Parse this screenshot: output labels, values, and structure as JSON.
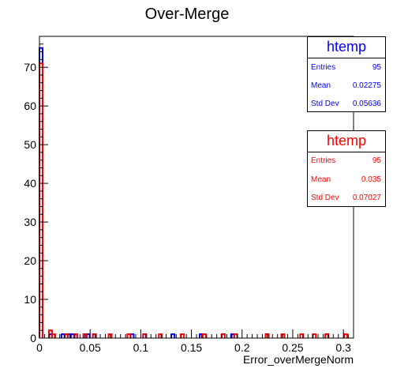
{
  "chart_data": {
    "type": "histogram",
    "title": "Over-Merge",
    "xlabel": "Error_overMergeNorm",
    "ylabel": "",
    "xlim": [
      0,
      0.31
    ],
    "ylim": [
      0,
      78
    ],
    "x_ticks": [
      {
        "v": 0,
        "label": "0"
      },
      {
        "v": 0.05,
        "label": "0.05"
      },
      {
        "v": 0.1,
        "label": "0.1"
      },
      {
        "v": 0.15,
        "label": "0.15"
      },
      {
        "v": 0.2,
        "label": "0.2"
      },
      {
        "v": 0.25,
        "label": "0.25"
      },
      {
        "v": 0.3,
        "label": "0.3"
      }
    ],
    "y_ticks": [
      {
        "v": 0,
        "label": "0"
      },
      {
        "v": 10,
        "label": "10"
      },
      {
        "v": 20,
        "label": "20"
      },
      {
        "v": 30,
        "label": "30"
      },
      {
        "v": 40,
        "label": "40"
      },
      {
        "v": 50,
        "label": "50"
      },
      {
        "v": 60,
        "label": "60"
      },
      {
        "v": 70,
        "label": "70"
      }
    ],
    "bin_width": 0.0031,
    "series": [
      {
        "color": "#0000ff",
        "bins": [
          {
            "x": 0.0,
            "y": 75
          },
          {
            "x": 0.0093,
            "y": 1
          },
          {
            "x": 0.0217,
            "y": 1
          },
          {
            "x": 0.0248,
            "y": 1
          },
          {
            "x": 0.0279,
            "y": 1
          },
          {
            "x": 0.031,
            "y": 1
          },
          {
            "x": 0.0341,
            "y": 1
          },
          {
            "x": 0.0434,
            "y": 1
          },
          {
            "x": 0.0465,
            "y": 1
          },
          {
            "x": 0.0527,
            "y": 1
          },
          {
            "x": 0.0899,
            "y": 1
          },
          {
            "x": 0.1023,
            "y": 1
          },
          {
            "x": 0.1302,
            "y": 1
          },
          {
            "x": 0.1581,
            "y": 1
          },
          {
            "x": 0.1798,
            "y": 1
          },
          {
            "x": 0.1891,
            "y": 1
          },
          {
            "x": 0.2232,
            "y": 1
          },
          {
            "x": 0.2821,
            "y": 1
          }
        ]
      },
      {
        "color": "#ff0000",
        "bins": [
          {
            "x": 0.0,
            "y": 71
          },
          {
            "x": 0.0093,
            "y": 2
          },
          {
            "x": 0.0124,
            "y": 1
          },
          {
            "x": 0.0248,
            "y": 1
          },
          {
            "x": 0.0341,
            "y": 1
          },
          {
            "x": 0.0434,
            "y": 1
          },
          {
            "x": 0.0527,
            "y": 1
          },
          {
            "x": 0.0682,
            "y": 1
          },
          {
            "x": 0.0868,
            "y": 1
          },
          {
            "x": 0.1023,
            "y": 1
          },
          {
            "x": 0.1178,
            "y": 1
          },
          {
            "x": 0.1395,
            "y": 1
          },
          {
            "x": 0.1612,
            "y": 1
          },
          {
            "x": 0.1798,
            "y": 1
          },
          {
            "x": 0.1922,
            "y": 1
          },
          {
            "x": 0.2232,
            "y": 1
          },
          {
            "x": 0.2387,
            "y": 1
          },
          {
            "x": 0.2573,
            "y": 1
          },
          {
            "x": 0.2697,
            "y": 1
          },
          {
            "x": 0.2821,
            "y": 1
          },
          {
            "x": 0.3007,
            "y": 1
          }
        ]
      }
    ]
  },
  "stats_boxes": [
    {
      "title": "htemp",
      "color": "#0000ff",
      "rows": [
        {
          "label": "Entries",
          "value": "95"
        },
        {
          "label": "Mean",
          "value": "0.02275"
        },
        {
          "label": "Std Dev",
          "value": "0.05636"
        }
      ]
    },
    {
      "title": "htemp",
      "color": "#ff0000",
      "rows": [
        {
          "label": "Entries",
          "value": "95"
        },
        {
          "label": "Mean",
          "value": "0.035"
        },
        {
          "label": "Std Dev",
          "value": "0.07027"
        }
      ]
    }
  ]
}
